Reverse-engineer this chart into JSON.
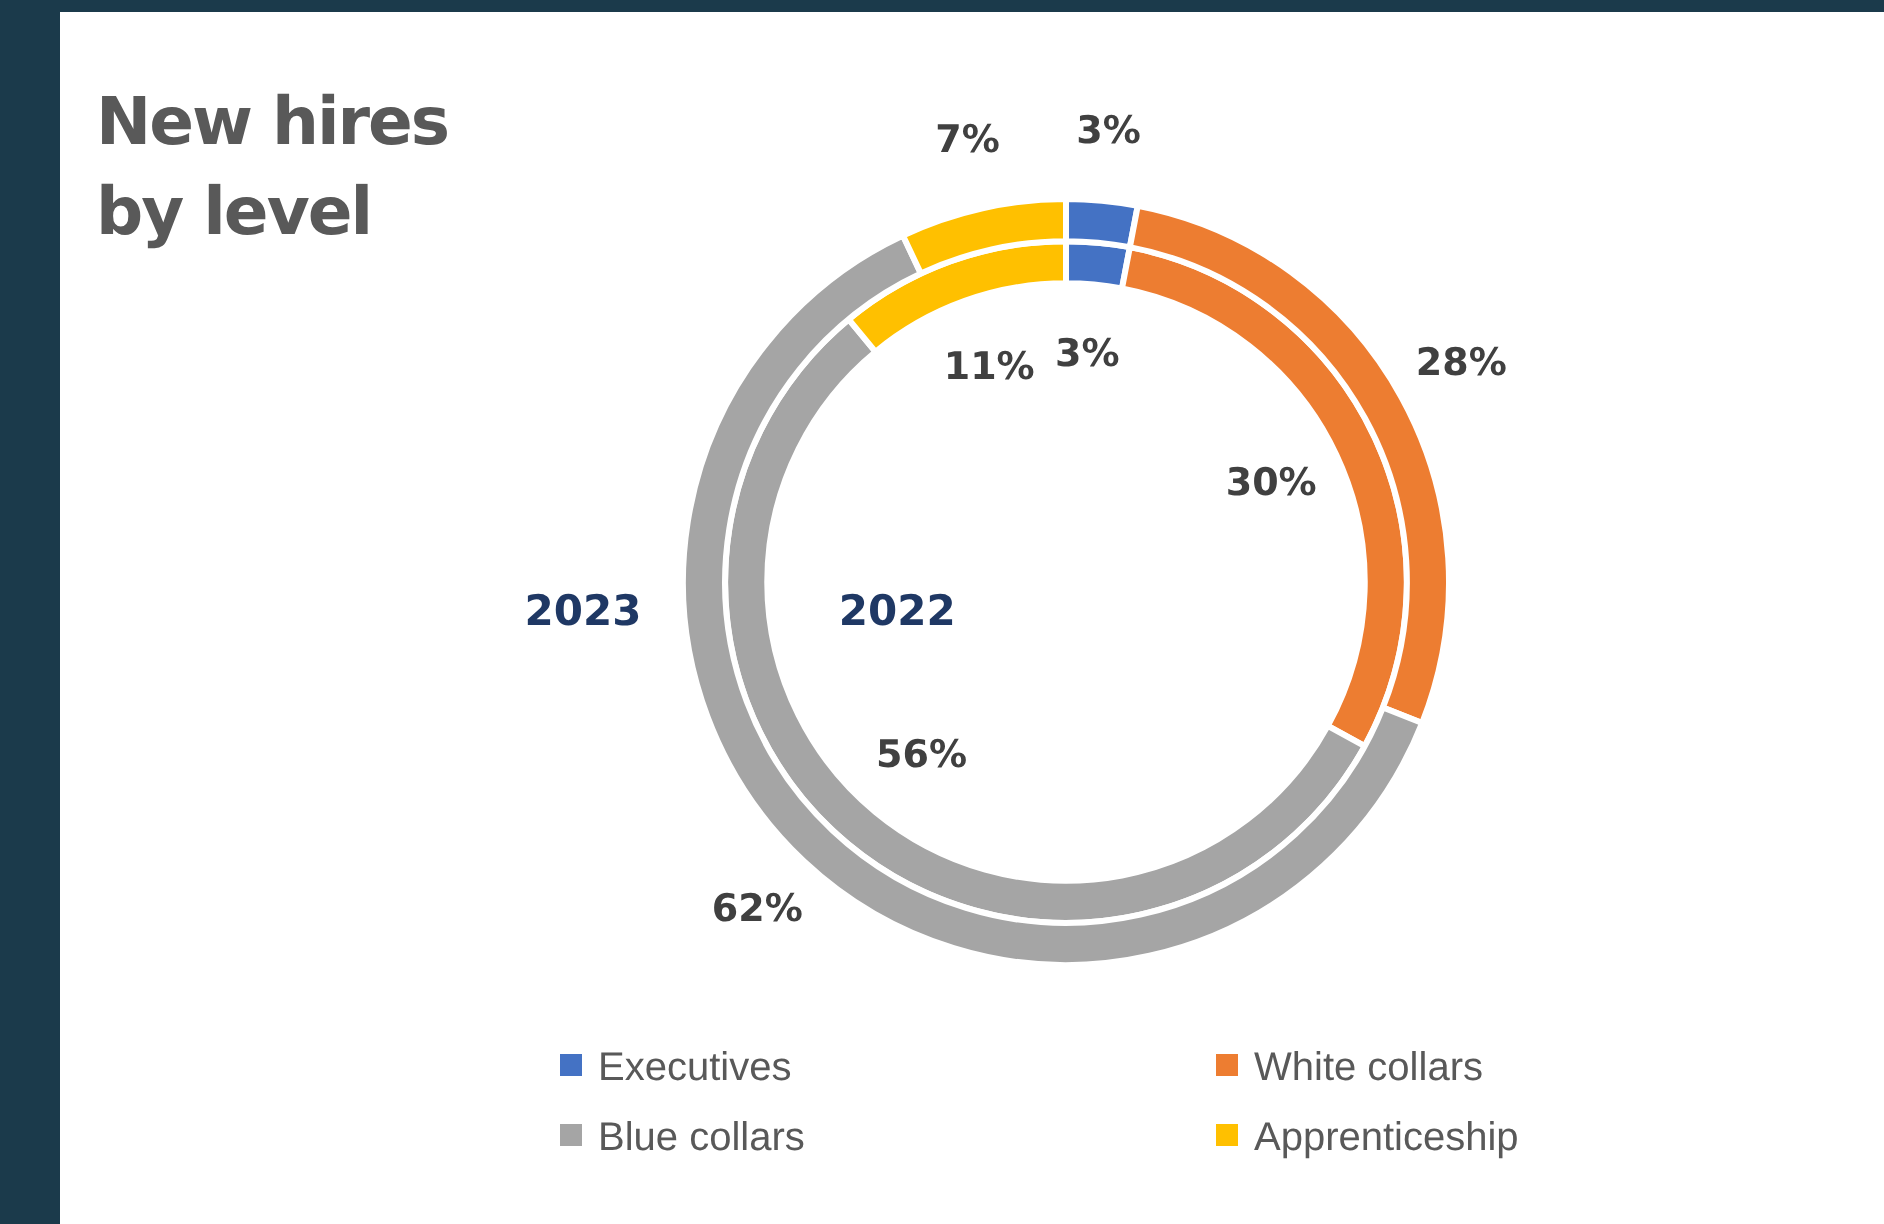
{
  "chart_data": {
    "type": "donut",
    "title": "New hires\nby level",
    "categories": [
      "Executives",
      "White collars",
      "Blue collars",
      "Apprenticeship"
    ],
    "colors": [
      "#4472c4",
      "#ed7d31",
      "#a5a5a5",
      "#ffc000"
    ],
    "series": [
      {
        "name": "2023",
        "values": [
          3,
          28,
          62,
          7
        ],
        "value_labels": [
          "3%",
          "28%",
          "62%",
          "7%"
        ]
      },
      {
        "name": "2022",
        "values": [
          3,
          30,
          56,
          11
        ],
        "value_labels": [
          "3%",
          "30%",
          "56%",
          "11%"
        ]
      }
    ],
    "legend": "bottom"
  }
}
